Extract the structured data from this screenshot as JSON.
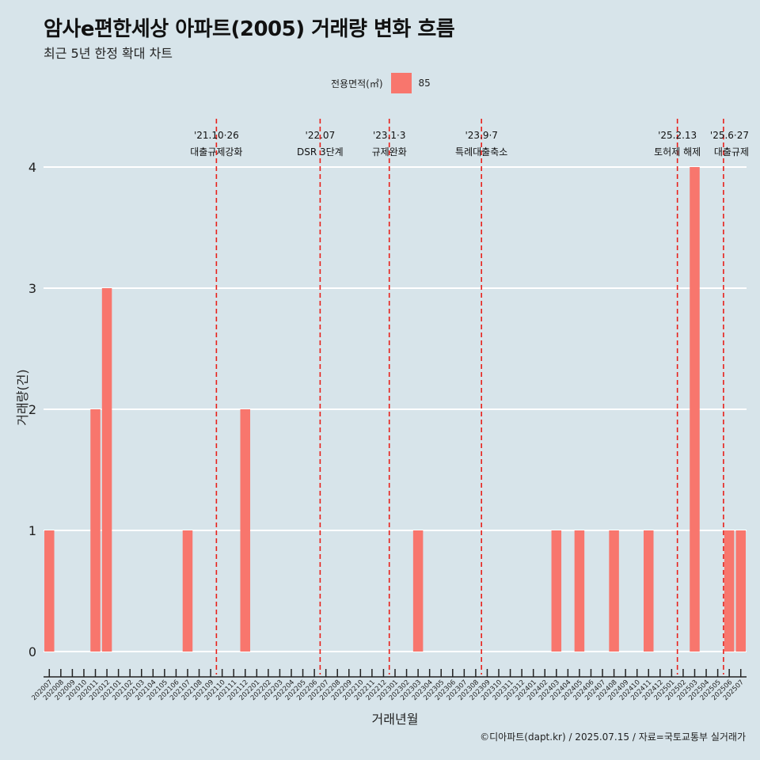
{
  "title": "암사e편한세상 아파트(2005) 거래량 변화 흐름",
  "subtitle": "최근 5년 한정 확대 차트",
  "legend": {
    "title": "전용면적(㎡)",
    "item": "85",
    "color": "#f8766d"
  },
  "caption": "©디아파트(dapt.kr) / 2025.07.15 / 자료=국토교통부 실거래가",
  "chart_data": {
    "type": "bar",
    "title": "암사e편한세상 아파트(2005) 거래량 변화 흐름",
    "subtitle": "최근 5년 한정 확대 차트",
    "xlabel": "거래년월",
    "ylabel": "거래량(건)",
    "ylim": [
      0,
      4
    ],
    "yticks": [
      0,
      1,
      2,
      3,
      4
    ],
    "grid": "horizontal",
    "legend_position": "top",
    "bar_color": "#f8766d",
    "categories": [
      "202007",
      "202008",
      "202009",
      "202010",
      "202011",
      "202012",
      "202101",
      "202102",
      "202103",
      "202104",
      "202105",
      "202106",
      "202107",
      "202108",
      "202109",
      "202110",
      "202111",
      "202112",
      "202201",
      "202202",
      "202203",
      "202204",
      "202205",
      "202206",
      "202207",
      "202208",
      "202209",
      "202210",
      "202211",
      "202212",
      "202301",
      "202302",
      "202303",
      "202304",
      "202305",
      "202306",
      "202307",
      "202308",
      "202309",
      "202310",
      "202311",
      "202312",
      "202401",
      "202402",
      "202403",
      "202404",
      "202405",
      "202406",
      "202407",
      "202408",
      "202409",
      "202410",
      "202411",
      "202412",
      "202501",
      "202502",
      "202503",
      "202504",
      "202505",
      "202506",
      "202507"
    ],
    "series": [
      {
        "name": "85",
        "values": [
          1,
          0,
          0,
          0,
          2,
          3,
          0,
          0,
          0,
          0,
          0,
          0,
          1,
          0,
          0,
          0,
          0,
          2,
          0,
          0,
          0,
          0,
          0,
          0,
          0,
          0,
          0,
          0,
          0,
          0,
          0,
          0,
          1,
          0,
          0,
          0,
          0,
          0,
          0,
          0,
          0,
          0,
          0,
          0,
          1,
          0,
          1,
          0,
          0,
          1,
          0,
          0,
          1,
          0,
          0,
          0,
          4,
          0,
          0,
          1,
          1
        ]
      }
    ],
    "annotations": [
      {
        "x": "202110",
        "date": "'21.10·26",
        "label": "대출규제강화"
      },
      {
        "x": "202207",
        "date": "'22.07",
        "label": "DSR 3단계"
      },
      {
        "x": "202301",
        "date": "'23.1·3",
        "label": "규제완화"
      },
      {
        "x": "202309",
        "date": "'23.9·7",
        "label": "특례대출축소"
      },
      {
        "x": "202502",
        "date": "'25.2.13",
        "label": "토허제 해제"
      },
      {
        "x": "202506",
        "date": "'25.6·27",
        "label": "대출규제"
      }
    ],
    "annotation_line_color": "#e8201a"
  }
}
